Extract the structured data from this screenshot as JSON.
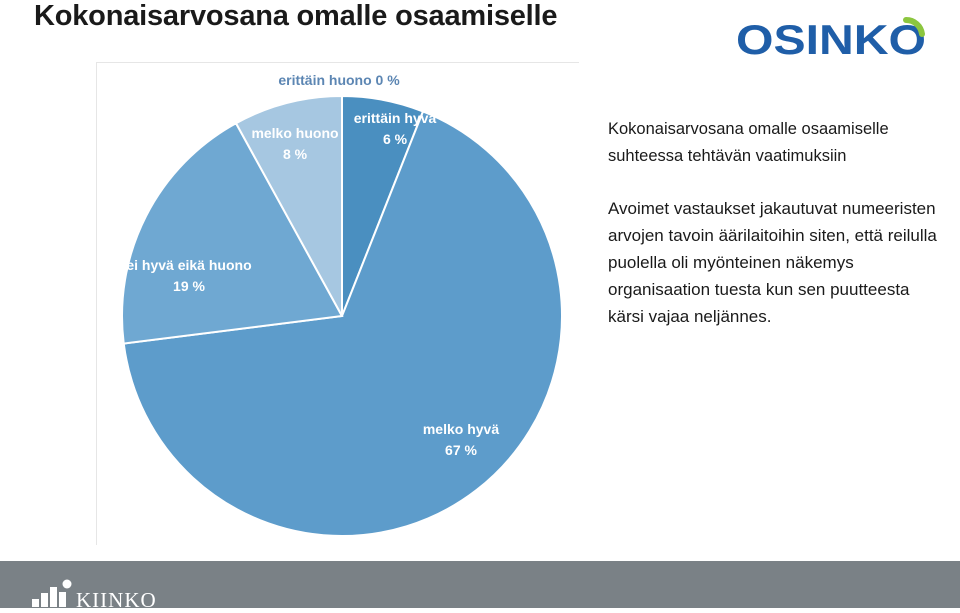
{
  "page": {
    "title": "Kokonaisarvosana omalle osaamiselle"
  },
  "brand": {
    "logo_text": "OSINKO",
    "logo_color": "#1f5ea8",
    "logo_accent": "#8cc63f",
    "footer_text": "KIINKO"
  },
  "side": {
    "heading": "Kokonaisarvosana omalle osaamiselle suhteessa tehtävän vaatimuksiin",
    "body": "Avoimet vastaukset jakautuvat numeeristen arvojen tavoin äärilaitoihin siten, että reilulla puolella oli myönteinen näkemys organisaation tuesta kun sen puutteesta kärsi vajaa neljännes."
  },
  "chart_data": {
    "type": "pie",
    "title": "",
    "slices": [
      {
        "label": "erittäin hyvä",
        "value": 6,
        "display": "6 %",
        "color": "#4a8fc0"
      },
      {
        "label": "melko hyvä",
        "value": 67,
        "display": "67 %",
        "color": "#5d9ccb"
      },
      {
        "label": "ei hyvä eikä huono",
        "value": 19,
        "display": "19 %",
        "color": "#6fa8d2"
      },
      {
        "label": "melko huono",
        "value": 8,
        "display": "8 %",
        "color": "#a6c7e1"
      },
      {
        "label": "erittäin huono",
        "value": 0,
        "display": "0 %",
        "color": "#c9ddee"
      }
    ],
    "label_color": "#ffffff",
    "outer_label_color": "#5c86b3"
  }
}
